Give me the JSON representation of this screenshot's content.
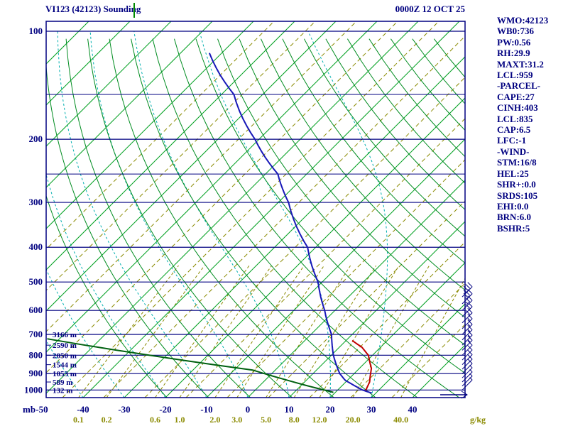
{
  "header": {
    "title": "VI123 (42123) Sounding",
    "datetime": "0000Z 12 OCT 25"
  },
  "stats_panel": {
    "lines": [
      "WMO:42123",
      "WB0:736",
      "PW:0.56",
      "RH:29.9",
      "MAXT:31.2",
      "LCL:959",
      "-PARCEL-",
      "CAPE:27",
      "CINH:403",
      "LCL:835",
      "CAP:6.5",
      "LFC:-1",
      "-WIND-",
      "STM:16/8",
      "HEL:25",
      "SHR+:0.0",
      "SRDS:105",
      "EHI:0.0",
      "BRN:6.0",
      "BSHR:5"
    ]
  },
  "chart_data": {
    "type": "skewt_log_p_sounding",
    "title": "VI123 (42123) Sounding",
    "datetime_label": "0000Z 12 OCT 25",
    "pressure_unit_label": "mb",
    "mixing_unit_label": "g/kg",
    "pressure_range": [
      100,
      1050
    ],
    "pressure_labels": [
      100,
      200,
      300,
      400,
      500,
      600,
      700,
      800,
      900,
      1000
    ],
    "pressure_lines": [
      100,
      150,
      200,
      250,
      300,
      400,
      500,
      600,
      700,
      800,
      900,
      1000
    ],
    "temp_ticks": [
      -50,
      -40,
      -30,
      -20,
      -10,
      0,
      10,
      20,
      30,
      40
    ],
    "isotherms": {
      "start": -130,
      "end": 40,
      "step": 10
    },
    "isotherms_dashed": {
      "start": -85,
      "end": 35,
      "step": 10
    },
    "dry_adiabats_theta_k": {
      "start": 250,
      "end": 440,
      "step": 10
    },
    "moist_adiabats_surface_c": [
      -60,
      -50,
      -40,
      -30,
      -20,
      -10,
      0,
      10,
      20,
      30
    ],
    "mixing_ratio_values": [
      0.1,
      0.2,
      0.6,
      1.0,
      2.0,
      3.0,
      5.0,
      8.0,
      12.0,
      20.0,
      40.0
    ],
    "height_labels": [
      {
        "p": 700,
        "label": "3166 m"
      },
      {
        "p": 750,
        "label": "2590 m"
      },
      {
        "p": 800,
        "label": "2050 m"
      },
      {
        "p": 850,
        "label": "1544 m"
      },
      {
        "p": 900,
        "label": "1053 m"
      },
      {
        "p": 950,
        "label": "589 m"
      },
      {
        "p": 1000,
        "label": "132 m"
      }
    ],
    "temperature_profile": [
      [
        1020,
        29
      ],
      [
        1000,
        26
      ],
      [
        940,
        19.5
      ],
      [
        900,
        16.5
      ],
      [
        850,
        13.5
      ],
      [
        800,
        10.5
      ],
      [
        700,
        5
      ],
      [
        600,
        -2.5
      ],
      [
        500,
        -11
      ],
      [
        400,
        -22
      ],
      [
        300,
        -37.5
      ],
      [
        250,
        -47
      ],
      [
        200,
        -61
      ],
      [
        150,
        -77
      ],
      [
        115,
        -93
      ]
    ],
    "dewpoint_profile": [
      [
        720,
        -63
      ],
      [
        880,
        -5.5
      ],
      [
        970,
        11
      ],
      [
        1015,
        19.5
      ]
    ],
    "parcel_profile": [
      [
        1008,
        27
      ],
      [
        950,
        25.8
      ],
      [
        870,
        22.9
      ],
      [
        800,
        19
      ],
      [
        760,
        15.5
      ],
      [
        728,
        11.5
      ]
    ],
    "wind_barbs": [
      {
        "p": 1000,
        "speed": 5
      },
      {
        "p": 975,
        "speed": 5
      },
      {
        "p": 950,
        "speed": 5
      },
      {
        "p": 925,
        "speed": 5
      },
      {
        "p": 900,
        "speed": 10
      },
      {
        "p": 875,
        "speed": 10
      },
      {
        "p": 850,
        "speed": 10
      },
      {
        "p": 825,
        "speed": 10
      },
      {
        "p": 800,
        "speed": 10
      },
      {
        "p": 775,
        "speed": 15
      },
      {
        "p": 750,
        "speed": 15
      },
      {
        "p": 725,
        "speed": 15
      },
      {
        "p": 700,
        "speed": 15
      },
      {
        "p": 675,
        "speed": 15
      },
      {
        "p": 650,
        "speed": 20
      },
      {
        "p": 625,
        "speed": 20
      },
      {
        "p": 600,
        "speed": 25
      },
      {
        "p": 575,
        "speed": 30
      },
      {
        "p": 550,
        "speed": 35
      }
    ],
    "colors": {
      "frame": "#000080",
      "isotherm": "#00A020",
      "dry_adiabat": "#008C20",
      "moist_adiabat": "#00AFAF",
      "mixing_ratio": "#8A8A00",
      "temperature": "#1818B8",
      "dewpoint": "#006010",
      "parcel": "#C00000",
      "text": "#000080",
      "mixing_text": "#8A8A00"
    }
  }
}
